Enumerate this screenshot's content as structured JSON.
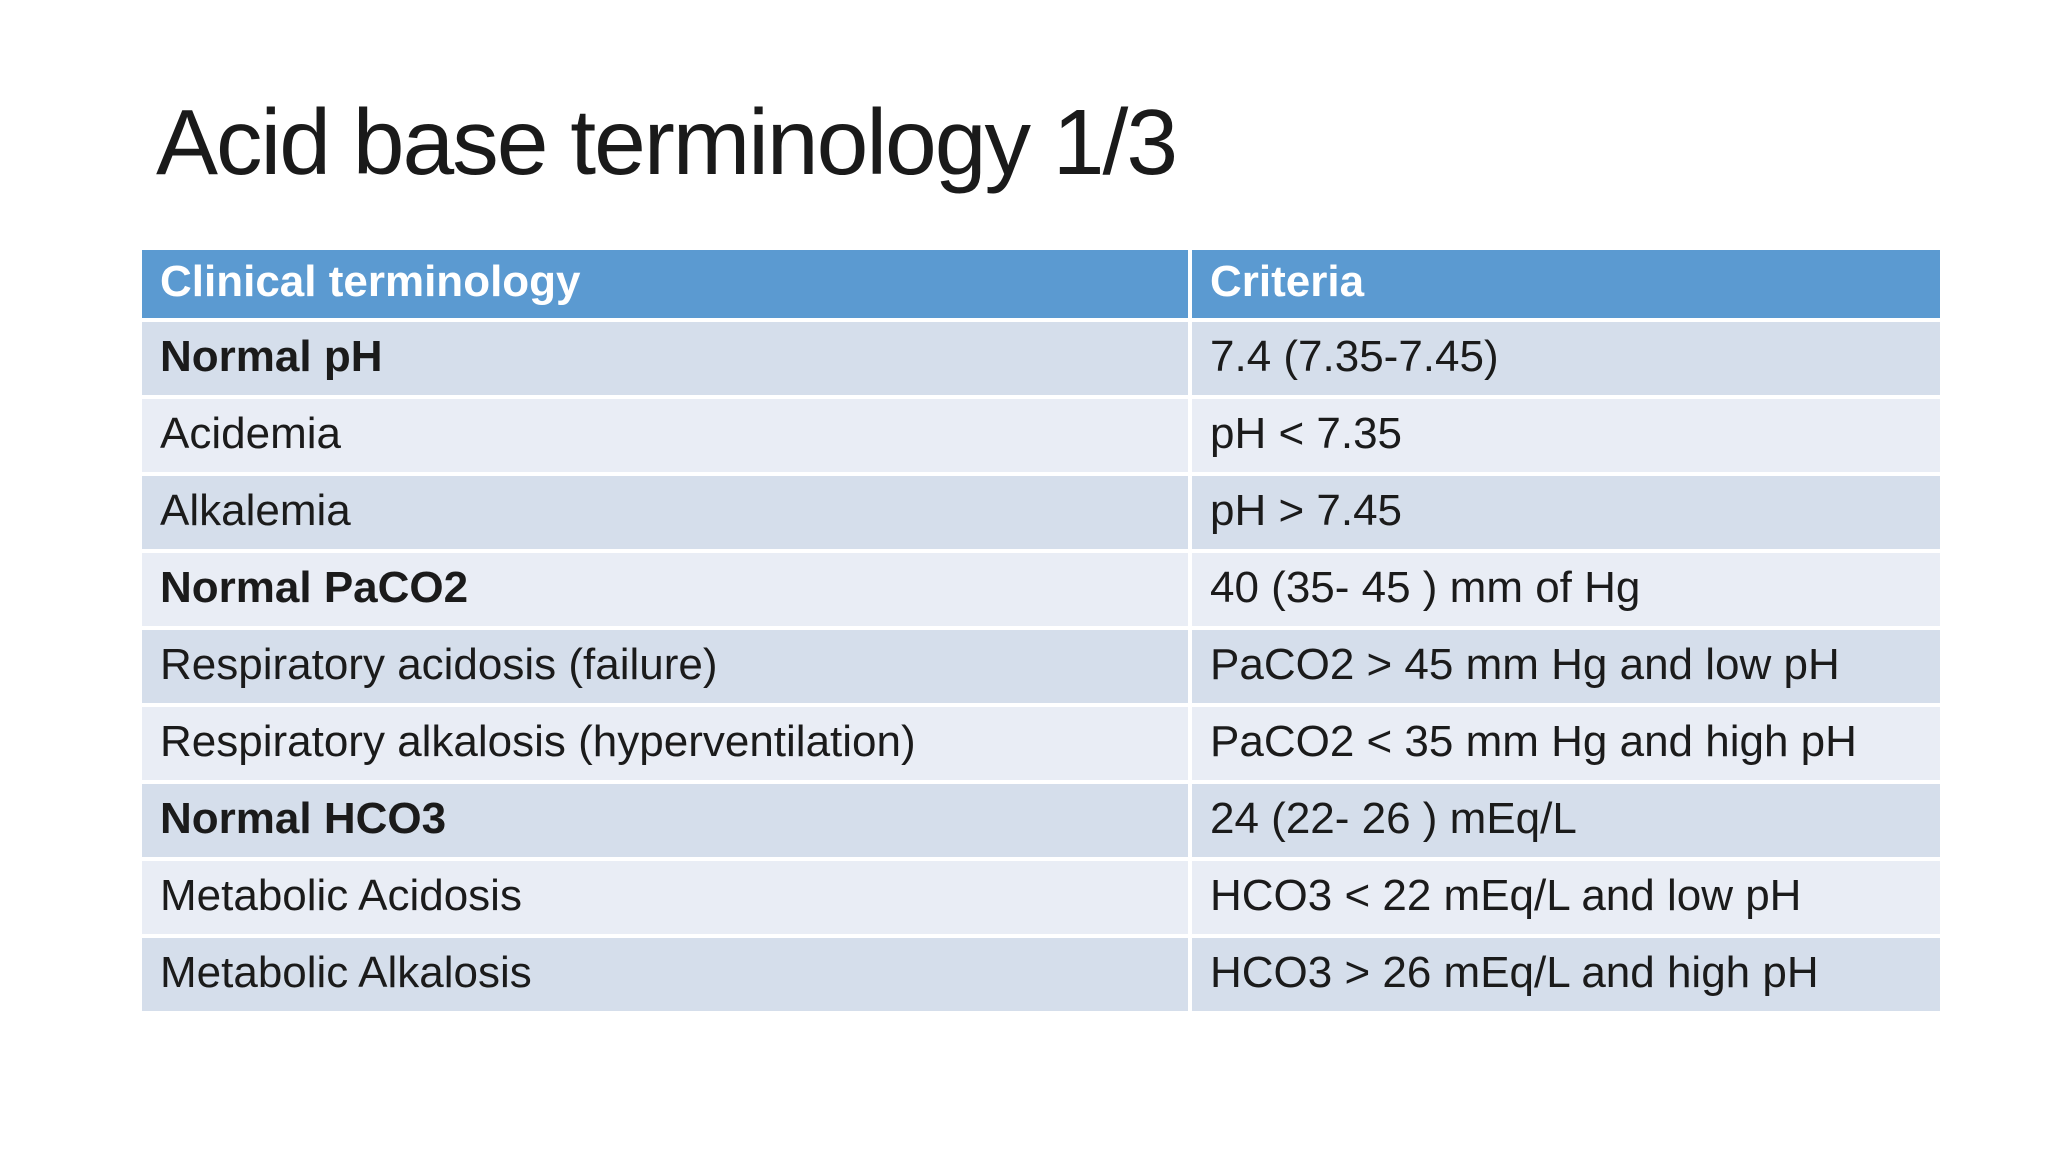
{
  "slide": {
    "title": "Acid base terminology 1/3",
    "table": {
      "columns": [
        "Clinical terminology",
        "Criteria"
      ],
      "rows": [
        {
          "term": "Normal pH",
          "criteria": "7.4 (7.35-7.45)",
          "bold": true
        },
        {
          "term": "Acidemia",
          "criteria": "pH < 7.35",
          "bold": false
        },
        {
          "term": "Alkalemia",
          "criteria": "pH > 7.45",
          "bold": false
        },
        {
          "term": "Normal PaCO2",
          "criteria": "40 (35- 45 ) mm of Hg",
          "bold": true
        },
        {
          "term": "Respiratory acidosis (failure)",
          "criteria": "PaCO2 > 45 mm Hg and low pH",
          "bold": false
        },
        {
          "term": "Respiratory alkalosis (hyperventilation)",
          "criteria": "PaCO2 < 35 mm Hg and high pH",
          "bold": false
        },
        {
          "term": "Normal HCO3",
          "criteria": "24 (22- 26 ) mEq/L",
          "bold": true
        },
        {
          "term": "Metabolic Acidosis",
          "criteria": "HCO3 < 22 mEq/L and low pH",
          "bold": false
        },
        {
          "term": "Metabolic Alkalosis",
          "criteria": "HCO3 > 26 mEq/L and high pH",
          "bold": false
        }
      ]
    },
    "colors": {
      "background": "#FFFFFF",
      "title_text": "#1A1A1A",
      "header_bg": "#5B9AD1",
      "header_text": "#FFFFFF",
      "band_dark": "#D5DEEB",
      "band_light": "#E9EDF5",
      "body_text": "#1B1B1B",
      "grid_line": "#FFFFFF"
    }
  }
}
